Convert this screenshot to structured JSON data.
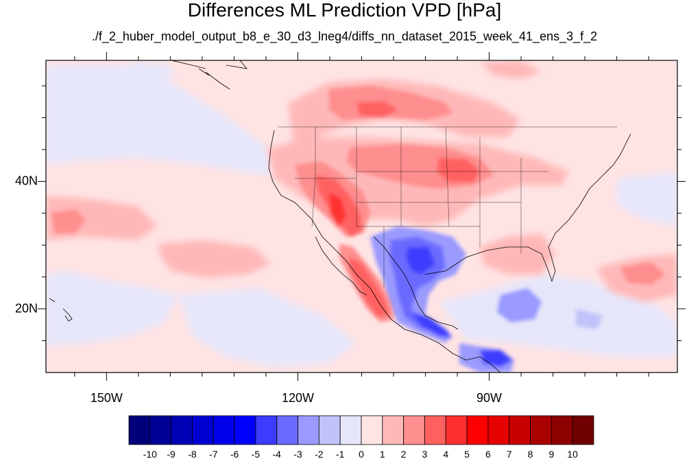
{
  "title": "Differences ML Prediction VPD [hPa]",
  "subtitle": "./f_2_huber_model_output_b8_e_30_d3_lneg4/diffs_nn_dataset_2015_week_41_ens_3_f_2",
  "axes": {
    "lon_ticks": [
      {
        "label": "150W",
        "lon": -150
      },
      {
        "label": "120W",
        "lon": -120
      },
      {
        "label": "90W",
        "lon": -90
      }
    ],
    "lat_ticks": [
      {
        "label": "40N",
        "lat": 40
      },
      {
        "label": "20N",
        "lat": 20
      }
    ],
    "lon_range": [
      -159.5,
      -60.5
    ],
    "lat_range": [
      10,
      59
    ]
  },
  "colorbar": {
    "labels": [
      "-10",
      "-9",
      "-8",
      "-7",
      "-6",
      "-5",
      "-4",
      "-3",
      "-2",
      "-1",
      "0",
      "1",
      "2",
      "3",
      "4",
      "5",
      "6",
      "7",
      "8",
      "9",
      "10"
    ],
    "colors": [
      "#00007a",
      "#000096",
      "#0000b4",
      "#0000d2",
      "#0000ea",
      "#0000ff",
      "#3c3cff",
      "#6a6aff",
      "#9a9aff",
      "#c2c2fb",
      "#e6e6fa",
      "#ffe4e4",
      "#ffb8b8",
      "#ff8e8e",
      "#ff6060",
      "#ff3030",
      "#ff0000",
      "#e60000",
      "#c80000",
      "#aa0000",
      "#8c0000",
      "#700000"
    ]
  },
  "icons": [
    "coastline-map",
    "state-boundaries"
  ]
}
